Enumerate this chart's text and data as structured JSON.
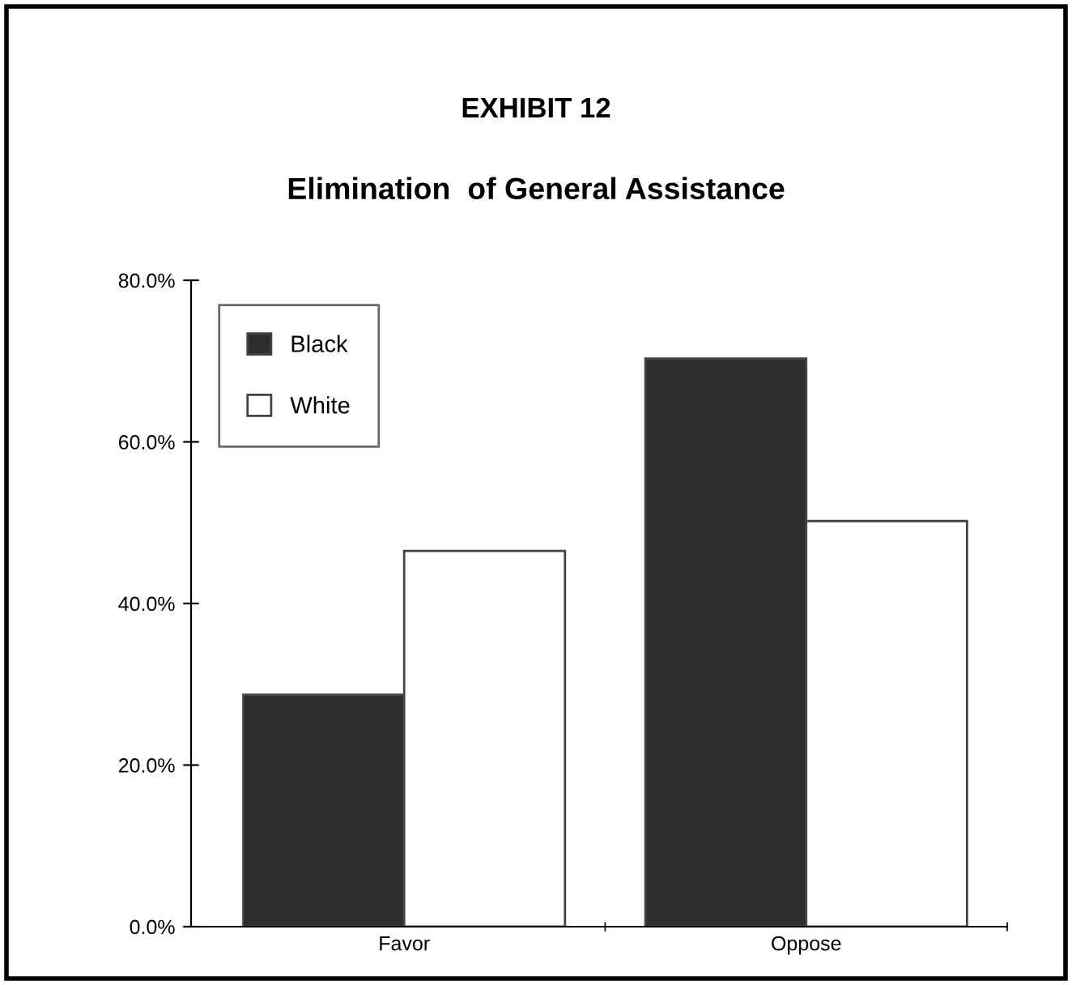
{
  "chart_data": {
    "type": "bar",
    "title": "EXHIBIT 12",
    "subtitle": "Elimination  of General Assistance",
    "categories": [
      "Favor",
      "Oppose"
    ],
    "series": [
      {
        "name": "Black",
        "color": "#2e2e2e",
        "values": [
          28.7,
          70.3
        ]
      },
      {
        "name": "White",
        "color": "#ffffff",
        "values": [
          46.5,
          50.2
        ]
      }
    ],
    "ylim": [
      0,
      80
    ],
    "yticks": [
      {
        "value": 0,
        "label": "0.0%"
      },
      {
        "value": 20,
        "label": "20.0%"
      },
      {
        "value": 40,
        "label": "40.0%"
      },
      {
        "value": 60,
        "label": "60.0%"
      },
      {
        "value": 80,
        "label": "80.0%"
      }
    ],
    "grid": false,
    "legend": "top left"
  }
}
